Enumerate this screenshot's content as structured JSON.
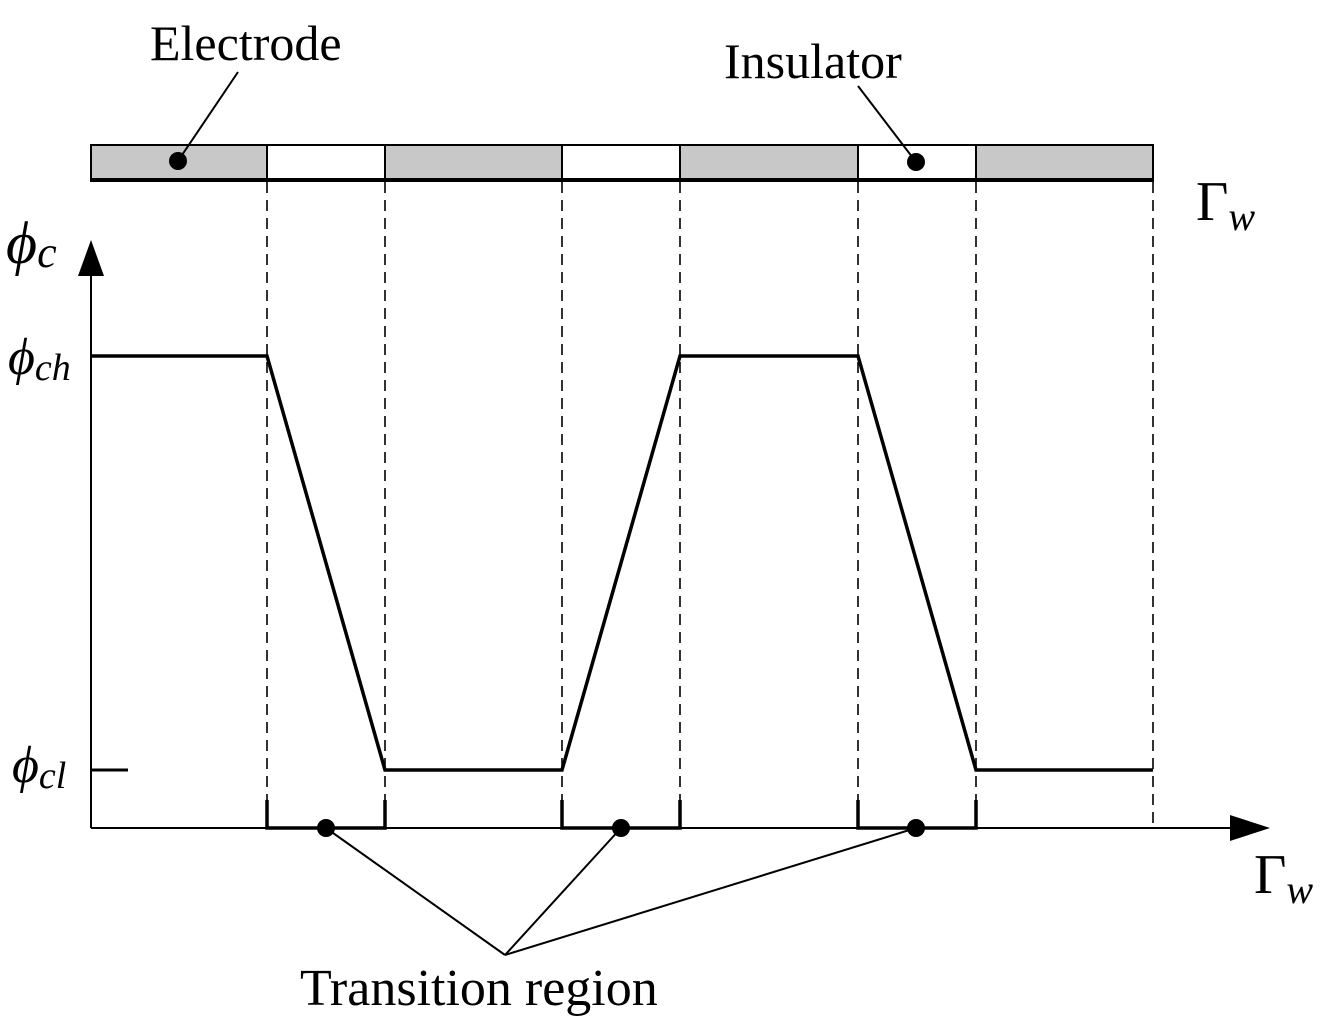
{
  "labels": {
    "electrode": "Electrode",
    "insulator": "Insulator",
    "transition_region": "Transition region",
    "gamma_top": {
      "base": "Γ",
      "sub": "w"
    },
    "gamma_axis": {
      "base": "Γ",
      "sub": "w"
    },
    "phi_c": {
      "base": "ϕ",
      "sub": "c"
    },
    "phi_ch": {
      "base": "ϕ",
      "sub": "ch"
    },
    "phi_cl": {
      "base": "ϕ",
      "sub": "cl"
    }
  },
  "strip": {
    "segments": [
      "electrode",
      "insulator",
      "electrode",
      "insulator",
      "electrode",
      "insulator",
      "electrode"
    ],
    "colors": {
      "electrode": "#c8c8c8",
      "insulator": "#ffffff"
    }
  },
  "waveform": {
    "levels": [
      "high",
      "transition",
      "low",
      "transition",
      "high",
      "transition",
      "low"
    ]
  }
}
